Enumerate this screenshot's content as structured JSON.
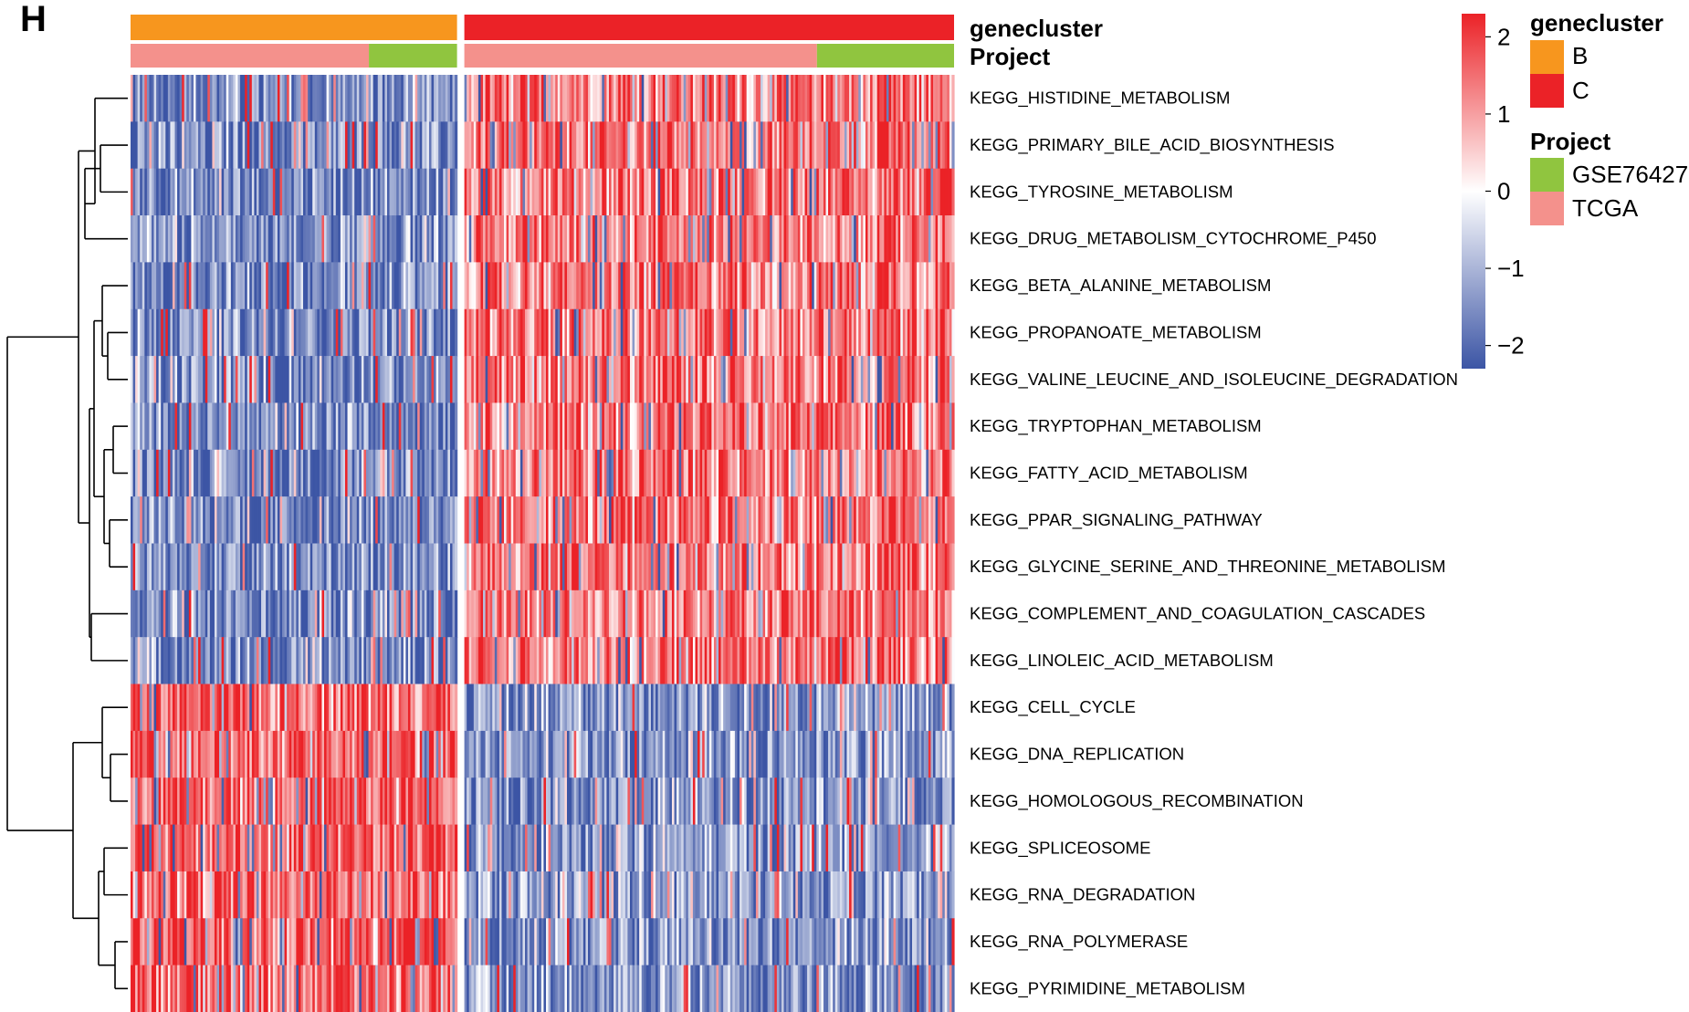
{
  "panel_label": "H",
  "chart_data": {
    "type": "heatmap",
    "title": "",
    "row_labels": [
      "KEGG_HISTIDINE_METABOLISM",
      "KEGG_PRIMARY_BILE_ACID_BIOSYNTHESIS",
      "KEGG_TYROSINE_METABOLISM",
      "KEGG_DRUG_METABOLISM_CYTOCHROME_P450",
      "KEGG_BETA_ALANINE_METABOLISM",
      "KEGG_PROPANOATE_METABOLISM",
      "KEGG_VALINE_LEUCINE_AND_ISOLEUCINE_DEGRADATION",
      "KEGG_TRYPTOPHAN_METABOLISM",
      "KEGG_FATTY_ACID_METABOLISM",
      "KEGG_PPAR_SIGNALING_PATHWAY",
      "KEGG_GLYCINE_SERINE_AND_THREONINE_METABOLISM",
      "KEGG_COMPLEMENT_AND_COAGULATION_CASCADES",
      "KEGG_LINOLEIC_ACID_METABOLISM",
      "KEGG_CELL_CYCLE",
      "KEGG_DNA_REPLICATION",
      "KEGG_HOMOLOGOUS_RECOMBINATION",
      "KEGG_SPLICEOSOME",
      "KEGG_RNA_DEGRADATION",
      "KEGG_RNA_POLYMERASE",
      "KEGG_PYRIMIDINE_METABOLISM"
    ],
    "row_groups": {
      "metabolic_pathways": {
        "rows": [
          0,
          12
        ],
        "mean_in_B": -1.6,
        "mean_in_C": 1.4
      },
      "proliferation_pathways": {
        "rows": [
          13,
          19
        ],
        "mean_in_B": 1.6,
        "mean_in_C": -1.4
      }
    },
    "column_annotations": {
      "genecluster": {
        "label": "genecluster",
        "levels": [
          {
            "name": "B",
            "color": "#F7961E"
          },
          {
            "name": "C",
            "color": "#EB2227"
          }
        ],
        "column_share": {
          "B": 0.4,
          "C": 0.6
        }
      },
      "Project": {
        "label": "Project",
        "levels": [
          {
            "name": "GSE76427",
            "color": "#90C53F"
          },
          {
            "name": "TCGA",
            "color": "#F4918C"
          }
        ],
        "tcga_share_within_B": 0.73,
        "tcga_share_within_C": 0.72
      }
    },
    "colorbar": {
      "min": -2.3,
      "max": 2.3,
      "ticks": [
        2,
        1,
        0,
        -1,
        -2
      ],
      "tick_labels": [
        "2",
        "1",
        "0",
        "−1",
        "−2"
      ],
      "colors": {
        "low": "#3C55A5",
        "mid": "#FFFFFF",
        "high": "#EB2227"
      }
    },
    "row_dendrogram": true,
    "column_split_at_cluster": true
  },
  "legend": {
    "genecluster_title": "genecluster",
    "genecluster_items": [
      {
        "label": "B",
        "color": "#F7961E"
      },
      {
        "label": "C",
        "color": "#EB2227"
      }
    ],
    "project_title": "Project",
    "project_items": [
      {
        "label": "GSE76427",
        "color": "#90C53F"
      },
      {
        "label": "TCGA",
        "color": "#F4918C"
      }
    ]
  }
}
